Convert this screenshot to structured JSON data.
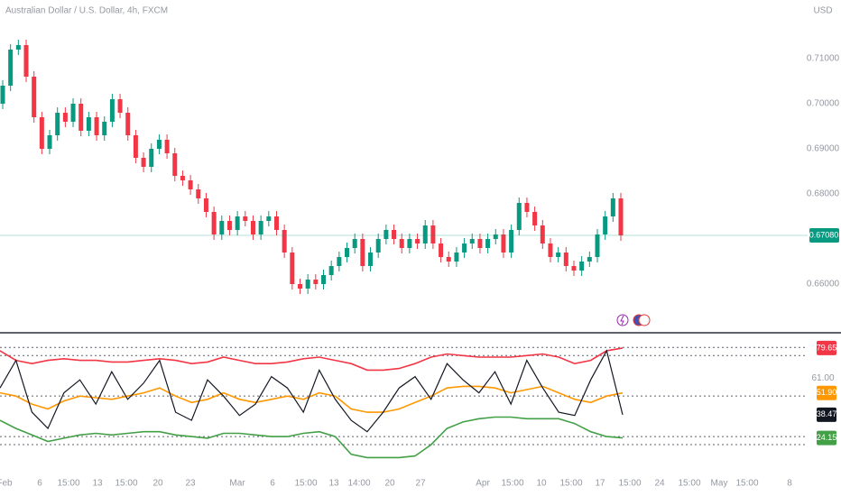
{
  "chart_data": [
    {
      "type": "candlestick",
      "title": "Australian Dollar / U.S. Dollar, 4h, FXCM",
      "currency": "USD",
      "up_color": "#089981",
      "down_color": "#f23645",
      "open": [
        0.7,
        0.704,
        0.712,
        0.713,
        0.706,
        0.697,
        0.69,
        0.693,
        0.698,
        0.696,
        0.7,
        0.694,
        0.697,
        0.693,
        0.696,
        0.701,
        0.698,
        0.693,
        0.688,
        0.686,
        0.69,
        0.692,
        0.689,
        0.684,
        0.683,
        0.681,
        0.679,
        0.676,
        0.671,
        0.674,
        0.672,
        0.675,
        0.674,
        0.671,
        0.674,
        0.675,
        0.672,
        0.667,
        0.66,
        0.659,
        0.661,
        0.66,
        0.662,
        0.664,
        0.666,
        0.668,
        0.67,
        0.664,
        0.667,
        0.67,
        0.672,
        0.67,
        0.668,
        0.67,
        0.669,
        0.673,
        0.669,
        0.666,
        0.665,
        0.667,
        0.669,
        0.67,
        0.668,
        0.67,
        0.671,
        0.667,
        0.672,
        0.678,
        0.676,
        0.673,
        0.669,
        0.666,
        0.667,
        0.664,
        0.663,
        0.665,
        0.666,
        0.671,
        0.675,
        0.679
      ],
      "high": [
        0.7052,
        0.7132,
        0.7142,
        0.7142,
        0.7072,
        0.6982,
        0.6942,
        0.6992,
        0.6992,
        0.7012,
        0.7012,
        0.6982,
        0.6982,
        0.6972,
        0.7022,
        0.7022,
        0.6992,
        0.6942,
        0.6892,
        0.6912,
        0.6932,
        0.6932,
        0.6902,
        0.6852,
        0.6842,
        0.6822,
        0.6802,
        0.6772,
        0.6752,
        0.6752,
        0.6762,
        0.6762,
        0.6752,
        0.6752,
        0.6762,
        0.6762,
        0.6732,
        0.6682,
        0.6612,
        0.6622,
        0.6622,
        0.6632,
        0.6652,
        0.6672,
        0.6692,
        0.6712,
        0.6712,
        0.6682,
        0.6712,
        0.6732,
        0.6732,
        0.6712,
        0.6712,
        0.6712,
        0.6742,
        0.6742,
        0.6702,
        0.6672,
        0.6682,
        0.6702,
        0.6712,
        0.6712,
        0.6712,
        0.6722,
        0.6722,
        0.6732,
        0.6792,
        0.6792,
        0.6772,
        0.6742,
        0.6702,
        0.6682,
        0.6682,
        0.6652,
        0.6662,
        0.6672,
        0.6722,
        0.6762,
        0.6802,
        0.6802
      ],
      "low": [
        0.6988,
        0.7028,
        0.7108,
        0.7048,
        0.6958,
        0.6888,
        0.6888,
        0.6918,
        0.6948,
        0.6948,
        0.6928,
        0.6928,
        0.6918,
        0.6918,
        0.6948,
        0.6968,
        0.6918,
        0.6868,
        0.6848,
        0.6848,
        0.6888,
        0.6878,
        0.6828,
        0.6818,
        0.6798,
        0.6778,
        0.6748,
        0.6698,
        0.6698,
        0.6708,
        0.6708,
        0.6728,
        0.6698,
        0.6698,
        0.6728,
        0.6708,
        0.6658,
        0.6588,
        0.6578,
        0.6578,
        0.6588,
        0.6588,
        0.6608,
        0.6628,
        0.6648,
        0.6668,
        0.6628,
        0.6628,
        0.6658,
        0.6688,
        0.6688,
        0.6668,
        0.6668,
        0.6678,
        0.6678,
        0.6678,
        0.6648,
        0.6638,
        0.6638,
        0.6658,
        0.6678,
        0.6668,
        0.6668,
        0.6688,
        0.6658,
        0.6658,
        0.6708,
        0.6748,
        0.6718,
        0.6678,
        0.6648,
        0.6648,
        0.6628,
        0.6618,
        0.6618,
        0.6638,
        0.6648,
        0.6698,
        0.6738,
        0.6696
      ],
      "close": [
        0.704,
        0.712,
        0.713,
        0.706,
        0.697,
        0.69,
        0.693,
        0.698,
        0.696,
        0.7,
        0.694,
        0.697,
        0.693,
        0.696,
        0.701,
        0.698,
        0.693,
        0.688,
        0.686,
        0.69,
        0.692,
        0.689,
        0.684,
        0.683,
        0.681,
        0.679,
        0.676,
        0.671,
        0.674,
        0.672,
        0.675,
        0.674,
        0.671,
        0.674,
        0.675,
        0.672,
        0.667,
        0.66,
        0.659,
        0.661,
        0.66,
        0.662,
        0.664,
        0.666,
        0.668,
        0.67,
        0.664,
        0.667,
        0.67,
        0.672,
        0.67,
        0.668,
        0.67,
        0.669,
        0.673,
        0.669,
        0.666,
        0.665,
        0.667,
        0.669,
        0.67,
        0.668,
        0.67,
        0.671,
        0.667,
        0.672,
        0.678,
        0.676,
        0.673,
        0.669,
        0.666,
        0.667,
        0.664,
        0.663,
        0.665,
        0.666,
        0.671,
        0.675,
        0.679,
        0.6708
      ],
      "current_price_label": "0.67080",
      "ylim": [
        0.6494,
        0.723
      ],
      "yticks": [
        {
          "value": 0.71,
          "label": "0.71000"
        },
        {
          "value": 0.7,
          "label": "0.70000"
        },
        {
          "value": 0.69,
          "label": "0.69000"
        },
        {
          "value": 0.68,
          "label": "0.68000"
        },
        {
          "value": 0.66,
          "label": "0.66000"
        }
      ]
    },
    {
      "type": "line",
      "series": [
        {
          "name": "Upper",
          "color": "#f23645",
          "values": [
            78,
            72,
            70,
            72,
            73,
            72,
            72,
            71,
            71,
            72,
            73,
            72,
            70,
            71,
            74,
            72,
            70,
            70,
            71,
            73,
            74,
            72,
            70,
            66,
            66,
            67,
            70,
            74,
            76,
            75,
            74,
            74,
            74,
            75,
            76,
            74,
            70,
            72,
            78,
            79.65
          ]
        },
        {
          "name": "Basis",
          "color": "#ff9800",
          "values": [
            52,
            50,
            45,
            42,
            47,
            50,
            49,
            48,
            50,
            52,
            55,
            50,
            46,
            48,
            52,
            48,
            46,
            48,
            50,
            48,
            52,
            50,
            42,
            40,
            40,
            42,
            46,
            50,
            55,
            56,
            56,
            55,
            52,
            54,
            56,
            52,
            48,
            46,
            50,
            51.9
          ],
          "value_labels": [
            null,
            null,
            null,
            null,
            null,
            null,
            null,
            null,
            null,
            null,
            null,
            null,
            null,
            null,
            null,
            null,
            null,
            null,
            null,
            null,
            null,
            null,
            null,
            null,
            null,
            null,
            null,
            null,
            null,
            null,
            null,
            null,
            null,
            null,
            null,
            null,
            null,
            null,
            null,
            "51.90"
          ]
        },
        {
          "name": "Lower",
          "color": "#43a047",
          "values": [
            35,
            30,
            26,
            22,
            24,
            26,
            27,
            26,
            27,
            28,
            28,
            26,
            25,
            24,
            27,
            27,
            26,
            25,
            25,
            27,
            28,
            25,
            14,
            12,
            12,
            12,
            13,
            20,
            30,
            34,
            36,
            37,
            37,
            36,
            36,
            36,
            33,
            28,
            25,
            24.15
          ]
        },
        {
          "name": "Oscillator",
          "color": "#131722",
          "values": [
            55,
            72,
            40,
            30,
            52,
            60,
            45,
            65,
            48,
            58,
            72,
            40,
            35,
            60,
            50,
            38,
            45,
            62,
            55,
            40,
            66,
            48,
            35,
            28,
            40,
            55,
            62,
            48,
            70,
            60,
            52,
            65,
            45,
            72,
            55,
            40,
            38,
            60,
            78,
            38.47
          ]
        }
      ],
      "ylim": [
        5,
        88.5
      ],
      "yticks": [
        {
          "value": 61,
          "label": "61.00"
        }
      ],
      "hlines": [
        80,
        75,
        50,
        25,
        20
      ],
      "x_labels": [
        "Feb",
        "6",
        "15:00",
        "13",
        "15:00",
        "20",
        "23",
        "Mar",
        "6",
        "15:00",
        "13",
        "14:00",
        "20",
        "27",
        "Apr",
        "15:00",
        "10",
        "15:00",
        "17",
        "15:00",
        "24",
        "15:00",
        "May",
        "15:00",
        "8"
      ]
    }
  ]
}
